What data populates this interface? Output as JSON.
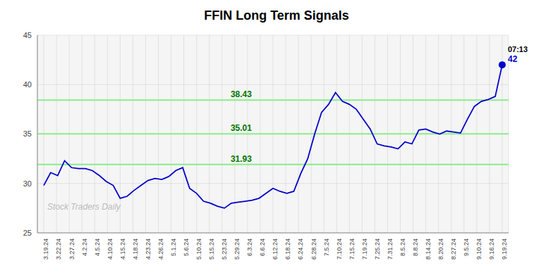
{
  "chart_data": {
    "type": "line",
    "title": "FFIN Long Term Signals",
    "color": "#0000cc",
    "marker": "last",
    "grid": true,
    "x": [
      0,
      0.5455,
      1.0909,
      1.6364,
      2.1818,
      2.7273,
      3.2727,
      3.8182,
      4.3636,
      4.9091,
      5.4545,
      6,
      6.5455,
      7.0909,
      7.6364,
      8.1818,
      8.7273,
      9.2727,
      9.8182,
      10.3636,
      10.9091,
      11.4545,
      12,
      12.5455,
      13.0909,
      13.6364,
      14.1818,
      14.7273,
      15.2727,
      15.8182,
      16.3636,
      16.9091,
      17.4545,
      18,
      18.5455,
      19.0909,
      19.6364,
      20.1818,
      20.7273,
      21.2727,
      21.8182,
      22.3636,
      22.9091,
      23.4545,
      24,
      24.5455,
      25.0909,
      25.6364,
      26.1818,
      26.7273,
      27.2727,
      27.8182,
      28.3636,
      28.9091,
      29.4545,
      30,
      30.5455,
      31.0909,
      31.6364,
      32.1818,
      32.7273,
      33.2727,
      33.8182,
      34.3636,
      34.9091,
      35.4545,
      36
    ],
    "values": [
      29.8,
      31.1,
      30.8,
      32.3,
      31.6,
      31.5,
      31.5,
      31.3,
      30.8,
      30.2,
      29.8,
      28.5,
      28.7,
      29.3,
      29.8,
      30.3,
      30.5,
      30.4,
      30.7,
      31.3,
      31.6,
      29.5,
      29.0,
      28.2,
      28.0,
      27.7,
      27.5,
      28.0,
      28.1,
      28.2,
      28.3,
      28.5,
      29.0,
      29.5,
      29.2,
      29.0,
      29.2,
      31.0,
      32.5,
      35.0,
      37.2,
      38.0,
      39.2,
      38.3,
      38.0,
      37.5,
      36.5,
      35.5,
      34.0,
      33.8,
      33.7,
      33.5,
      34.2,
      34.0,
      35.4,
      35.5,
      35.2,
      35.0,
      35.3,
      35.2,
      35.1,
      36.5,
      37.8,
      38.3,
      38.5,
      38.8,
      42.0
    ],
    "xlim": [
      -0.5,
      36.5
    ],
    "xticks": [
      {
        "value": 0,
        "label": "3.19.24"
      },
      {
        "value": 1,
        "label": "3.22.24"
      },
      {
        "value": 2,
        "label": "3.27.24"
      },
      {
        "value": 3,
        "label": "4.2.24"
      },
      {
        "value": 4,
        "label": "4.5.24"
      },
      {
        "value": 5,
        "label": "4.10.24"
      },
      {
        "value": 6,
        "label": "4.15.24"
      },
      {
        "value": 7,
        "label": "4.18.24"
      },
      {
        "value": 8,
        "label": "4.23.24"
      },
      {
        "value": 9,
        "label": "4.26.24"
      },
      {
        "value": 10,
        "label": "5.1.24"
      },
      {
        "value": 11,
        "label": "5.6.24"
      },
      {
        "value": 12,
        "label": "5.10.24"
      },
      {
        "value": 13,
        "label": "5.15.24"
      },
      {
        "value": 14,
        "label": "5.23.24"
      },
      {
        "value": 15,
        "label": "5.29.24"
      },
      {
        "value": 16,
        "label": "6.3.24"
      },
      {
        "value": 17,
        "label": "6.6.24"
      },
      {
        "value": 18,
        "label": "6.12.24"
      },
      {
        "value": 19,
        "label": "6.18.24"
      },
      {
        "value": 20,
        "label": "6.24.24"
      },
      {
        "value": 21,
        "label": "6.28.24"
      },
      {
        "value": 22,
        "label": "7.5.24"
      },
      {
        "value": 23,
        "label": "7.10.24"
      },
      {
        "value": 24,
        "label": "7.15.24"
      },
      {
        "value": 25,
        "label": "7.19.24"
      },
      {
        "value": 26,
        "label": "7.25.24"
      },
      {
        "value": 27,
        "label": "7.31.24"
      },
      {
        "value": 28,
        "label": "8.5.24"
      },
      {
        "value": 29,
        "label": "8.8.24"
      },
      {
        "value": 30,
        "label": "8.14.24"
      },
      {
        "value": 31,
        "label": "8.20.24"
      },
      {
        "value": 32,
        "label": "8.27.24"
      },
      {
        "value": 33,
        "label": "9.5.24"
      },
      {
        "value": 34,
        "label": "9.10.24"
      },
      {
        "value": 35,
        "label": "9.16.24"
      },
      {
        "value": 36,
        "label": "9.19.24"
      }
    ],
    "ylim": [
      25,
      45
    ],
    "yticks": [
      25,
      30,
      35,
      40,
      45
    ],
    "hlines": [
      {
        "value": 38.43,
        "label": "38.43"
      },
      {
        "value": 35.01,
        "label": "35.01"
      },
      {
        "value": 31.93,
        "label": "31.93"
      }
    ],
    "hline_color": "#88ee88",
    "hline_label_color": "#007700",
    "annotations": [
      {
        "text": "07:13",
        "color": "#000000"
      },
      {
        "text": "42",
        "color": "#0000cc"
      }
    ],
    "watermark": "Stock Traders Daily",
    "watermark_color": "#bbbbbb"
  }
}
